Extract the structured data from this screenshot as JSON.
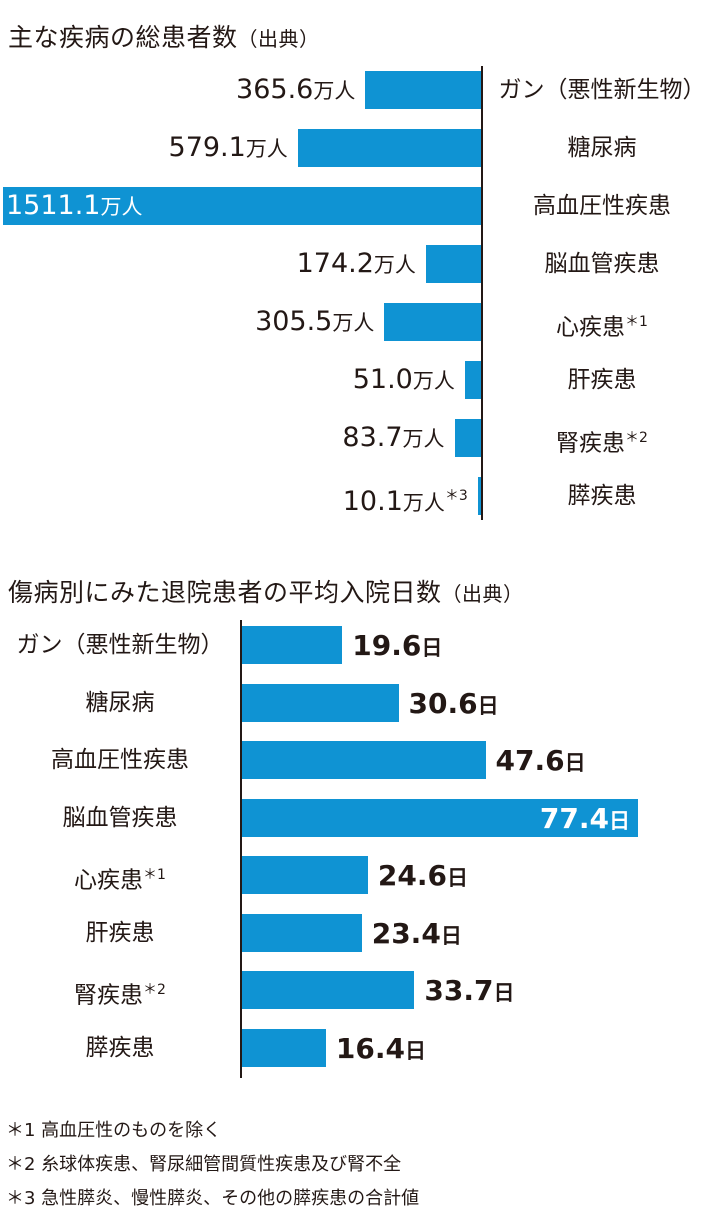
{
  "chart_data": [
    {
      "type": "bar",
      "orientation": "horizontal",
      "title": "主な疾病の総患者数",
      "title_note": "（出典）",
      "value_unit": "万人",
      "categories": [
        "ガン（悪性新生物）",
        "糖尿病",
        "高血圧性疾患",
        "脳血管疾患",
        "心疾患",
        "肝疾患",
        "腎疾患",
        "膵疾患"
      ],
      "category_footnotes": [
        "",
        "",
        "",
        "",
        "＊1",
        "",
        "＊2",
        ""
      ],
      "value_footnotes": [
        "",
        "",
        "",
        "",
        "",
        "",
        "",
        "＊3"
      ],
      "values": [
        365.6,
        579.1,
        1511.1,
        174.2,
        305.5,
        51.0,
        83.7,
        10.1
      ],
      "value_labels": [
        "365.6",
        "579.1",
        "1511.1",
        "174.2",
        "305.5",
        "51.0",
        "83.7",
        "10.1"
      ],
      "bar_color": "#0f93d3",
      "bar_direction": "right-to-left"
    },
    {
      "type": "bar",
      "orientation": "horizontal",
      "title": "傷病別にみた退院患者の平均入院日数",
      "title_note": "（出典）",
      "value_unit": "日",
      "categories": [
        "ガン（悪性新生物）",
        "糖尿病",
        "高血圧性疾患",
        "脳血管疾患",
        "心疾患",
        "肝疾患",
        "腎疾患",
        "膵疾患"
      ],
      "category_footnotes": [
        "",
        "",
        "",
        "",
        "＊1",
        "",
        "＊2",
        ""
      ],
      "values": [
        19.6,
        30.6,
        47.6,
        77.4,
        24.6,
        23.4,
        33.7,
        16.4
      ],
      "value_labels": [
        "19.6",
        "30.6",
        "47.6",
        "77.4",
        "24.6",
        "23.4",
        "33.7",
        "16.4"
      ],
      "bar_color": "#0f93d3",
      "bar_direction": "left-to-right"
    }
  ],
  "footnotes": [
    "＊1 高血圧性のものを除く",
    "＊2 糸球体疾患、腎尿細管間質性疾患及び腎不全",
    "＊3 急性膵炎、慢性膵炎、その他の膵疾患の合計値"
  ]
}
